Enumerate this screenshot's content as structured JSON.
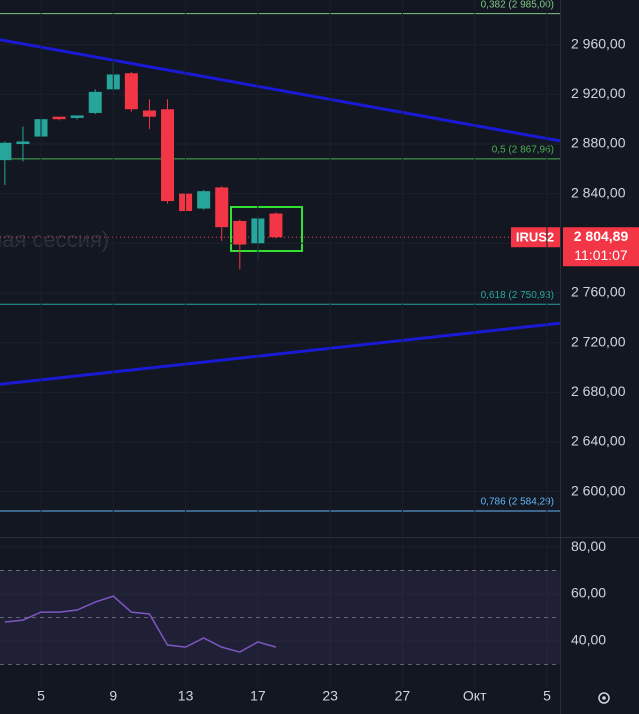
{
  "chart_data": [
    {
      "type": "candlestick",
      "x": [
        -2,
        -1,
        0,
        1,
        2,
        3,
        4,
        5,
        6,
        7,
        8,
        9,
        10,
        11,
        12,
        13
      ],
      "open": [
        2867,
        2880,
        2886,
        2902,
        2901,
        2905,
        2924,
        2937,
        2907,
        2908,
        2840,
        2828,
        2845,
        2818,
        2800,
        2824
      ],
      "high": [
        2882,
        2894,
        2901,
        2902,
        2903,
        2924,
        2946,
        2938,
        2916,
        2916,
        2841,
        2843,
        2846,
        2819,
        2822,
        2825
      ],
      "low": [
        2847,
        2866,
        2885,
        2899,
        2900,
        2904,
        2923,
        2906,
        2892,
        2832,
        2825,
        2827,
        2802,
        2779,
        2786,
        2804
      ],
      "close": [
        2881,
        2882,
        2900,
        2900,
        2903,
        2922,
        2936,
        2908,
        2902,
        2834,
        2826,
        2842,
        2813,
        2799,
        2820,
        2804.89
      ],
      "up_color": "#26a69a",
      "down_color": "#f23645",
      "xlim": [
        -2.27,
        28.72
      ],
      "xticks": [
        {
          "value": 0,
          "label": "5"
        },
        {
          "value": 4,
          "label": "9"
        },
        {
          "value": 8,
          "label": "13"
        },
        {
          "value": 12,
          "label": "17"
        },
        {
          "value": 16,
          "label": "23"
        },
        {
          "value": 20,
          "label": "27"
        },
        {
          "value": 24,
          "label": "Окт"
        },
        {
          "value": 28,
          "label": "5"
        }
      ],
      "ylim": [
        2565,
        2996
      ],
      "yticks": [
        {
          "value": 2600,
          "label": "2 600,00"
        },
        {
          "value": 2640,
          "label": "2 640,00"
        },
        {
          "value": 2680,
          "label": "2 680,00"
        },
        {
          "value": 2720,
          "label": "2 720,00"
        },
        {
          "value": 2760,
          "label": "2 760,00"
        },
        {
          "value": 2800,
          "label": "2 800,00"
        },
        {
          "value": 2840,
          "label": "2 840,00"
        },
        {
          "value": 2880,
          "label": "2 880,00"
        },
        {
          "value": 2920,
          "label": "2 920,00"
        },
        {
          "value": 2960,
          "label": "2 960,00"
        }
      ],
      "levels": [
        {
          "label": "0,382 (2 985,00)",
          "value": 2985,
          "color": "#81c784"
        },
        {
          "label": "0,5 (2 867,96)",
          "value": 2867.96,
          "color": "#4caf50"
        },
        {
          "label": "0,618 (2 750,93)",
          "value": 2750.93,
          "color": "#26a69a"
        },
        {
          "label": "0,786 (2 584,29)",
          "value": 2584.29,
          "color": "#64b5f6"
        }
      ],
      "trendlines": [
        {
          "color": "#1a1ad6",
          "x": [
            -2.27,
            28.72
          ],
          "y": [
            2964,
            2882.5
          ]
        },
        {
          "color": "#1a1ad6",
          "x": [
            -2.27,
            28.72
          ],
          "y": [
            2686.4,
            2735.6
          ]
        }
      ],
      "symbol": "IRUS2",
      "last_price": {
        "value": 2804.89,
        "label": "2 804,89"
      },
      "countdown": "11:01:07",
      "watermark": "ная сессия)"
    },
    {
      "type": "line",
      "x": [
        -2,
        -1,
        0,
        1,
        2,
        3,
        4,
        5,
        6,
        7,
        8,
        9,
        10,
        11,
        12,
        13
      ],
      "values": [
        48.1,
        48.9,
        52.3,
        52.3,
        53.2,
        56.6,
        59.1,
        52.3,
        51.5,
        38.3,
        37.4,
        41.3,
        37.4,
        35.3,
        39.6,
        37.4
      ],
      "color": "#7e57c2",
      "ylim": [
        20,
        83
      ],
      "yticks": [
        {
          "value": 40,
          "label": "40,00"
        },
        {
          "value": 60,
          "label": "60,00"
        },
        {
          "value": 80,
          "label": "80,00"
        }
      ],
      "band": [
        30,
        70
      ],
      "levels": [
        70,
        50,
        30
      ]
    }
  ]
}
